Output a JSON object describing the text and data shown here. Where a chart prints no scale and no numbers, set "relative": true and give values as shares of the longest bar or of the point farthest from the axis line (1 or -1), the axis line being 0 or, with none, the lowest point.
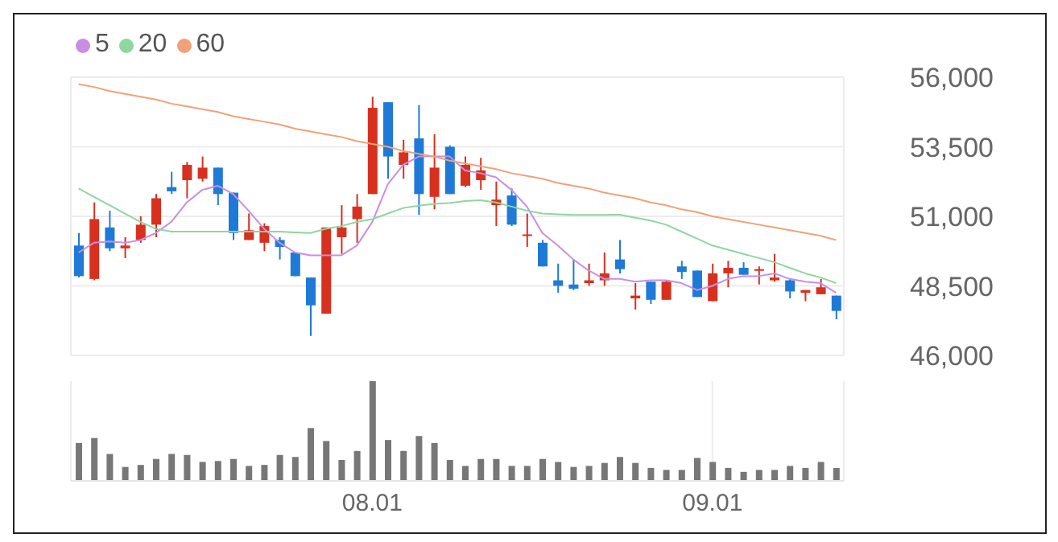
{
  "chart_data": [
    {
      "type": "candlestick",
      "categories": [
        null,
        null,
        null,
        null,
        null,
        null,
        null,
        null,
        null,
        null,
        null,
        null,
        null,
        null,
        null,
        null,
        null,
        null,
        null,
        "08.01",
        null,
        null,
        null,
        null,
        null,
        null,
        null,
        null,
        null,
        null,
        null,
        null,
        null,
        null,
        null,
        null,
        null,
        null,
        null,
        null,
        null,
        "09.01",
        null,
        null,
        null,
        null,
        null,
        null,
        null,
        null
      ],
      "ohlc": [
        [
          49950,
          50400,
          48800,
          48850
        ],
        [
          48750,
          51500,
          48700,
          50900
        ],
        [
          50600,
          51200,
          49750,
          49850
        ],
        [
          49850,
          50250,
          49500,
          49950
        ],
        [
          50150,
          51000,
          50050,
          50700
        ],
        [
          50700,
          51800,
          50250,
          51650
        ],
        [
          52050,
          52600,
          51800,
          51900
        ],
        [
          52300,
          52950,
          51650,
          52850
        ],
        [
          52350,
          53150,
          52250,
          52750
        ],
        [
          52750,
          52750,
          51400,
          51800
        ],
        [
          51850,
          51850,
          50150,
          50400
        ],
        [
          50150,
          51100,
          50150,
          50500
        ],
        [
          50050,
          50750,
          49750,
          50650
        ],
        [
          50150,
          50250,
          49450,
          49900
        ],
        [
          49700,
          49700,
          48850,
          48850
        ],
        [
          48800,
          48800,
          46700,
          47800
        ],
        [
          47500,
          50600,
          47500,
          50600
        ],
        [
          50250,
          51400,
          49650,
          50600
        ],
        [
          50900,
          51800,
          50050,
          51350
        ],
        [
          51800,
          55300,
          51800,
          54900
        ],
        [
          55100,
          55100,
          52350,
          53150
        ],
        [
          52850,
          53750,
          52350,
          53300
        ],
        [
          53800,
          55000,
          51050,
          51800
        ],
        [
          51700,
          53950,
          51250,
          52750
        ],
        [
          53500,
          53550,
          51800,
          51800
        ],
        [
          52100,
          53150,
          52050,
          52850
        ],
        [
          52300,
          53100,
          51950,
          52650
        ],
        [
          51400,
          52250,
          50650,
          51600
        ],
        [
          51750,
          52000,
          50650,
          50700
        ],
        [
          50300,
          51100,
          49900,
          50350
        ],
        [
          50050,
          50150,
          49200,
          49200
        ],
        [
          48700,
          49300,
          48250,
          48500
        ],
        [
          48550,
          49450,
          48350,
          48400
        ],
        [
          48600,
          49300,
          48500,
          48700
        ],
        [
          48700,
          49700,
          48500,
          48950
        ],
        [
          49450,
          50150,
          48950,
          49100
        ],
        [
          48050,
          48600,
          47650,
          48150
        ],
        [
          48650,
          48650,
          47850,
          48000
        ],
        [
          48000,
          48700,
          48000,
          48650
        ],
        [
          49200,
          49400,
          48750,
          49000
        ],
        [
          49050,
          49050,
          48100,
          48100
        ],
        [
          47950,
          49300,
          47950,
          48950
        ],
        [
          48950,
          49400,
          48450,
          49150
        ],
        [
          49150,
          49350,
          48900,
          48900
        ],
        [
          49050,
          49200,
          48550,
          49100
        ],
        [
          48700,
          49650,
          48650,
          48800
        ],
        [
          48700,
          48750,
          48050,
          48300
        ],
        [
          48250,
          48350,
          47950,
          48350
        ],
        [
          48200,
          48750,
          48200,
          48450
        ],
        [
          48150,
          48150,
          47300,
          47600
        ]
      ],
      "colors": [
        "#1e7ad6",
        "#d7301f",
        "#1e7ad6",
        "#d7301f",
        "#d7301f",
        "#d7301f",
        "#1e7ad6",
        "#d7301f",
        "#d7301f",
        "#1e7ad6",
        "#1e7ad6",
        "#d7301f",
        "#d7301f",
        "#1e7ad6",
        "#1e7ad6",
        "#1e7ad6",
        "#d7301f",
        "#d7301f",
        "#d7301f",
        "#d7301f",
        "#1e7ad6",
        "#d7301f",
        "#1e7ad6",
        "#d7301f",
        "#1e7ad6",
        "#d7301f",
        "#d7301f",
        "#d7301f",
        "#1e7ad6",
        "#d7301f",
        "#1e7ad6",
        "#1e7ad6",
        "#1e7ad6",
        "#d7301f",
        "#d7301f",
        "#1e7ad6",
        "#d7301f",
        "#1e7ad6",
        "#d7301f",
        "#1e7ad6",
        "#1e7ad6",
        "#d7301f",
        "#d7301f",
        "#1e7ad6",
        "#d7301f",
        "#d7301f",
        "#1e7ad6",
        "#d7301f",
        "#d7301f",
        "#1e7ad6"
      ],
      "series": [
        {
          "type": "line",
          "name": "5",
          "color": "#c98ee3",
          "values": [
            49700,
            50050,
            50100,
            50050,
            50150,
            50400,
            50800,
            51500,
            51950,
            52100,
            51800,
            51200,
            50550,
            50050,
            49700,
            49600,
            49600,
            49600,
            49950,
            50800,
            52150,
            52850,
            53150,
            53150,
            53150,
            52650,
            52550,
            52400,
            51950,
            51350,
            50400,
            49950,
            49450,
            49050,
            48750,
            48750,
            48650,
            48700,
            48700,
            48600,
            48350,
            48500,
            48750,
            48850,
            48850,
            48950,
            48750,
            48650,
            48600,
            48250
          ]
        },
        {
          "type": "line",
          "name": "20",
          "color": "#8fd6a0",
          "values": [
            52000,
            51700,
            51400,
            51100,
            50800,
            50550,
            50450,
            50450,
            50450,
            50450,
            50450,
            50450,
            50450,
            50450,
            50420,
            50400,
            50550,
            50650,
            50800,
            50900,
            51100,
            51300,
            51380,
            51450,
            51480,
            51550,
            51580,
            51500,
            51350,
            51200,
            51100,
            51070,
            51050,
            51050,
            51050,
            51060,
            50950,
            50850,
            50700,
            50450,
            50200,
            49950,
            49800,
            49650,
            49500,
            49350,
            49150,
            48950,
            48800,
            48600
          ]
        },
        {
          "type": "line",
          "name": "60",
          "color": "#f0a27a",
          "values": [
            55750,
            55650,
            55500,
            55400,
            55300,
            55200,
            55050,
            54950,
            54850,
            54750,
            54600,
            54500,
            54400,
            54300,
            54150,
            54050,
            53950,
            53850,
            53700,
            53600,
            53500,
            53350,
            53250,
            53150,
            53000,
            52900,
            52800,
            52700,
            52550,
            52450,
            52350,
            52200,
            52100,
            52000,
            51850,
            51750,
            51650,
            51500,
            51400,
            51250,
            51150,
            51000,
            50900,
            50800,
            50700,
            50600,
            50500,
            50400,
            50300,
            50150
          ]
        }
      ],
      "ylim": [
        46000,
        56000
      ],
      "yticks": [
        {
          "value": 46000,
          "label": "46,000"
        },
        {
          "value": 48500,
          "label": "48,500"
        },
        {
          "value": 51000,
          "label": "51,000"
        },
        {
          "value": 53500,
          "label": "53,500"
        },
        {
          "value": 56000,
          "label": "56,000"
        }
      ],
      "grid": true,
      "legend": "top left",
      "tick_labels": "y"
    },
    {
      "type": "bar",
      "relative": true,
      "categories": [
        null,
        null,
        null,
        null,
        null,
        null,
        null,
        null,
        null,
        null,
        null,
        null,
        null,
        null,
        null,
        null,
        null,
        null,
        null,
        "08.01",
        null,
        null,
        null,
        null,
        null,
        null,
        null,
        null,
        null,
        null,
        null,
        null,
        null,
        null,
        null,
        null,
        null,
        null,
        null,
        null,
        null,
        "09.01",
        null,
        null,
        null,
        null,
        null,
        null,
        null,
        null
      ],
      "values": [
        0.38,
        0.43,
        0.27,
        0.14,
        0.16,
        0.22,
        0.27,
        0.26,
        0.19,
        0.2,
        0.22,
        0.15,
        0.16,
        0.26,
        0.24,
        0.53,
        0.4,
        0.21,
        0.3,
        1,
        0.41,
        0.3,
        0.45,
        0.38,
        0.21,
        0.15,
        0.22,
        0.22,
        0.15,
        0.15,
        0.22,
        0.19,
        0.14,
        0.15,
        0.18,
        0.24,
        0.18,
        0.13,
        0.11,
        0.11,
        0.23,
        0.19,
        0.13,
        0.09,
        0.11,
        0.11,
        0.15,
        0.13,
        0.19,
        0.13
      ],
      "color": "#777777",
      "grid": "x",
      "tick_labels": "x"
    }
  ]
}
